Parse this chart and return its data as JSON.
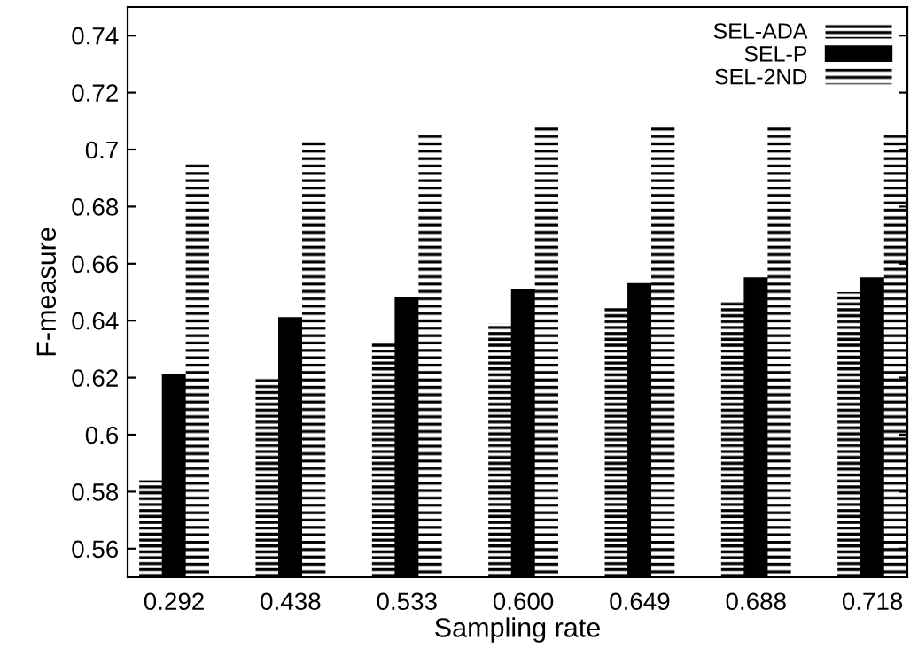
{
  "chart_data": {
    "type": "bar",
    "xlabel": "Sampling rate",
    "ylabel": "F-measure",
    "categories": [
      "0.292",
      "0.438",
      "0.533",
      "0.600",
      "0.649",
      "0.688",
      "0.718"
    ],
    "series": [
      {
        "name": "SEL-ADA",
        "color": "#000000",
        "values": [
          0.584,
          0.62,
          0.632,
          0.639,
          0.645,
          0.647,
          0.65
        ]
      },
      {
        "name": "SEL-P",
        "color": "#000000",
        "values": [
          0.621,
          0.641,
          0.648,
          0.651,
          0.653,
          0.655,
          0.655
        ]
      },
      {
        "name": "SEL-2ND",
        "color": "#000000",
        "values": [
          0.695,
          0.703,
          0.705,
          0.708,
          0.708,
          0.708,
          0.705
        ]
      }
    ],
    "ylim": [
      0.55,
      0.75
    ],
    "yticks": [
      0.56,
      0.58,
      0.6,
      0.62,
      0.64,
      0.66,
      0.68,
      0.7,
      0.72,
      0.74
    ],
    "grid": false,
    "legend": "top right"
  }
}
